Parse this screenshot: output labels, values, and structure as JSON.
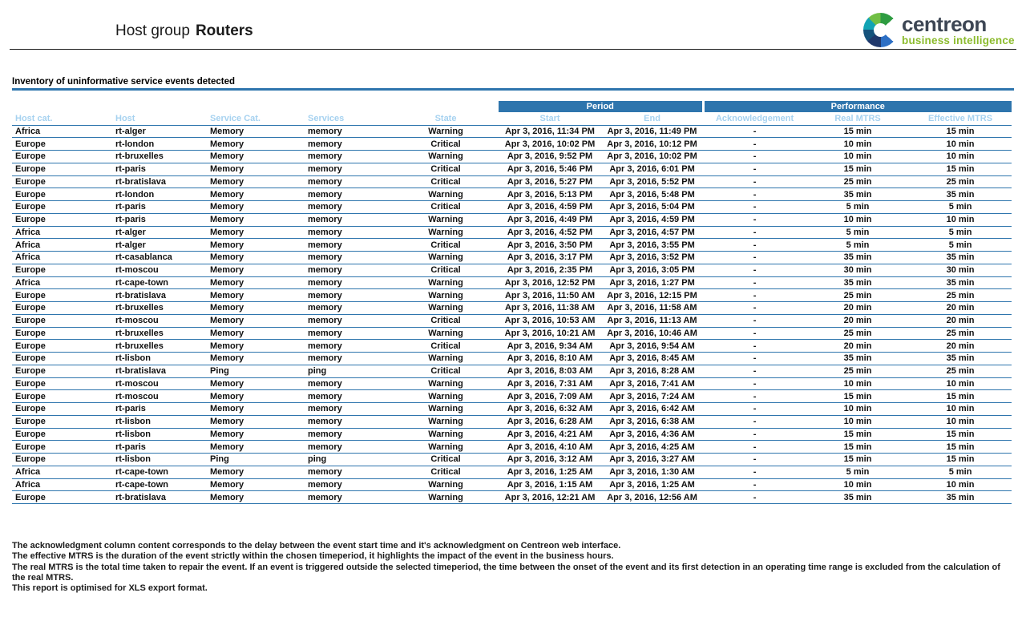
{
  "report": {
    "title_prefix": "Host group",
    "group_name": "Routers",
    "section_title": "Inventory of uninformative service events detected"
  },
  "logo": {
    "brand": "centreon",
    "tagline": "business intelligence",
    "mark": "centreon-c-icon"
  },
  "colors": {
    "table_header_blue": "#2E75AD",
    "column_label_blue": "#A6D2F0",
    "warning_orange": "#F7A13E",
    "critical_red": "#ED2151",
    "brand_dark": "#3D4654",
    "brand_green": "#8CBB2E"
  },
  "table": {
    "group_headers": {
      "period": "Period",
      "performance": "Performance"
    },
    "columns": [
      "Host cat.",
      "Host",
      "Service Cat.",
      "Services",
      "State",
      "Start",
      "End",
      "Acknowledgement",
      "Real MTRS",
      "Effective MTRS"
    ],
    "column_keys": [
      "host-cat",
      "host",
      "service-cat",
      "services",
      "state",
      "start",
      "end",
      "acknowledgement",
      "real-mtrs",
      "effective-mtrs"
    ],
    "rows": [
      [
        "Africa",
        "rt-alger",
        "Memory",
        "memory",
        "Warning",
        "Apr 3, 2016, 11:34 PM",
        "Apr 3, 2016, 11:49 PM",
        "-",
        "15 min",
        "15 min"
      ],
      [
        "Europe",
        "rt-london",
        "Memory",
        "memory",
        "Critical",
        "Apr 3, 2016, 10:02 PM",
        "Apr 3, 2016, 10:12 PM",
        "-",
        "10 min",
        "10 min"
      ],
      [
        "Europe",
        "rt-bruxelles",
        "Memory",
        "memory",
        "Warning",
        "Apr 3, 2016, 9:52 PM",
        "Apr 3, 2016, 10:02 PM",
        "-",
        "10 min",
        "10 min"
      ],
      [
        "Europe",
        "rt-paris",
        "Memory",
        "memory",
        "Critical",
        "Apr 3, 2016, 5:46 PM",
        "Apr 3, 2016, 6:01 PM",
        "-",
        "15 min",
        "15 min"
      ],
      [
        "Europe",
        "rt-bratislava",
        "Memory",
        "memory",
        "Critical",
        "Apr 3, 2016, 5:27 PM",
        "Apr 3, 2016, 5:52 PM",
        "-",
        "25 min",
        "25 min"
      ],
      [
        "Europe",
        "rt-london",
        "Memory",
        "memory",
        "Warning",
        "Apr 3, 2016, 5:13 PM",
        "Apr 3, 2016, 5:48 PM",
        "-",
        "35 min",
        "35 min"
      ],
      [
        "Europe",
        "rt-paris",
        "Memory",
        "memory",
        "Critical",
        "Apr 3, 2016, 4:59 PM",
        "Apr 3, 2016, 5:04 PM",
        "-",
        "5 min",
        "5 min"
      ],
      [
        "Europe",
        "rt-paris",
        "Memory",
        "memory",
        "Warning",
        "Apr 3, 2016, 4:49 PM",
        "Apr 3, 2016, 4:59 PM",
        "-",
        "10 min",
        "10 min"
      ],
      [
        "Africa",
        "rt-alger",
        "Memory",
        "memory",
        "Warning",
        "Apr 3, 2016, 4:52 PM",
        "Apr 3, 2016, 4:57 PM",
        "-",
        "5 min",
        "5 min"
      ],
      [
        "Africa",
        "rt-alger",
        "Memory",
        "memory",
        "Critical",
        "Apr 3, 2016, 3:50 PM",
        "Apr 3, 2016, 3:55 PM",
        "-",
        "5 min",
        "5 min"
      ],
      [
        "Africa",
        "rt-casablanca",
        "Memory",
        "memory",
        "Warning",
        "Apr 3, 2016, 3:17 PM",
        "Apr 3, 2016, 3:52 PM",
        "-",
        "35 min",
        "35 min"
      ],
      [
        "Europe",
        "rt-moscou",
        "Memory",
        "memory",
        "Critical",
        "Apr 3, 2016, 2:35 PM",
        "Apr 3, 2016, 3:05 PM",
        "-",
        "30 min",
        "30 min"
      ],
      [
        "Africa",
        "rt-cape-town",
        "Memory",
        "memory",
        "Warning",
        "Apr 3, 2016, 12:52 PM",
        "Apr 3, 2016, 1:27 PM",
        "-",
        "35 min",
        "35 min"
      ],
      [
        "Europe",
        "rt-bratislava",
        "Memory",
        "memory",
        "Warning",
        "Apr 3, 2016, 11:50 AM",
        "Apr 3, 2016, 12:15 PM",
        "-",
        "25 min",
        "25 min"
      ],
      [
        "Europe",
        "rt-bruxelles",
        "Memory",
        "memory",
        "Warning",
        "Apr 3, 2016, 11:38 AM",
        "Apr 3, 2016, 11:58 AM",
        "-",
        "20 min",
        "20 min"
      ],
      [
        "Europe",
        "rt-moscou",
        "Memory",
        "memory",
        "Critical",
        "Apr 3, 2016, 10:53 AM",
        "Apr 3, 2016, 11:13 AM",
        "-",
        "20 min",
        "20 min"
      ],
      [
        "Europe",
        "rt-bruxelles",
        "Memory",
        "memory",
        "Warning",
        "Apr 3, 2016, 10:21 AM",
        "Apr 3, 2016, 10:46 AM",
        "-",
        "25 min",
        "25 min"
      ],
      [
        "Europe",
        "rt-bruxelles",
        "Memory",
        "memory",
        "Critical",
        "Apr 3, 2016, 9:34 AM",
        "Apr 3, 2016, 9:54 AM",
        "-",
        "20 min",
        "20 min"
      ],
      [
        "Europe",
        "rt-lisbon",
        "Memory",
        "memory",
        "Warning",
        "Apr 3, 2016, 8:10 AM",
        "Apr 3, 2016, 8:45 AM",
        "-",
        "35 min",
        "35 min"
      ],
      [
        "Europe",
        "rt-bratislava",
        "Ping",
        "ping",
        "Critical",
        "Apr 3, 2016, 8:03 AM",
        "Apr 3, 2016, 8:28 AM",
        "-",
        "25 min",
        "25 min"
      ],
      [
        "Europe",
        "rt-moscou",
        "Memory",
        "memory",
        "Warning",
        "Apr 3, 2016, 7:31 AM",
        "Apr 3, 2016, 7:41 AM",
        "-",
        "10 min",
        "10 min"
      ],
      [
        "Europe",
        "rt-moscou",
        "Memory",
        "memory",
        "Warning",
        "Apr 3, 2016, 7:09 AM",
        "Apr 3, 2016, 7:24 AM",
        "-",
        "15 min",
        "15 min"
      ],
      [
        "Europe",
        "rt-paris",
        "Memory",
        "memory",
        "Warning",
        "Apr 3, 2016, 6:32 AM",
        "Apr 3, 2016, 6:42 AM",
        "-",
        "10 min",
        "10 min"
      ],
      [
        "Europe",
        "rt-lisbon",
        "Memory",
        "memory",
        "Warning",
        "Apr 3, 2016, 6:28 AM",
        "Apr 3, 2016, 6:38 AM",
        "-",
        "10 min",
        "10 min"
      ],
      [
        "Europe",
        "rt-lisbon",
        "Memory",
        "memory",
        "Warning",
        "Apr 3, 2016, 4:21 AM",
        "Apr 3, 2016, 4:36 AM",
        "-",
        "15 min",
        "15 min"
      ],
      [
        "Europe",
        "rt-paris",
        "Memory",
        "memory",
        "Warning",
        "Apr 3, 2016, 4:10 AM",
        "Apr 3, 2016, 4:25 AM",
        "-",
        "15 min",
        "15 min"
      ],
      [
        "Europe",
        "rt-lisbon",
        "Ping",
        "ping",
        "Critical",
        "Apr 3, 2016, 3:12 AM",
        "Apr 3, 2016, 3:27 AM",
        "-",
        "15 min",
        "15 min"
      ],
      [
        "Africa",
        "rt-cape-town",
        "Memory",
        "memory",
        "Critical",
        "Apr 3, 2016, 1:25 AM",
        "Apr 3, 2016, 1:30 AM",
        "-",
        "5 min",
        "5 min"
      ],
      [
        "Africa",
        "rt-cape-town",
        "Memory",
        "memory",
        "Warning",
        "Apr 3, 2016, 1:15 AM",
        "Apr 3, 2016, 1:25 AM",
        "-",
        "10 min",
        "10 min"
      ],
      [
        "Europe",
        "rt-bratislava",
        "Memory",
        "memory",
        "Warning",
        "Apr 3, 2016, 12:21 AM",
        "Apr 3, 2016, 12:56 AM",
        "-",
        "35 min",
        "35 min"
      ]
    ]
  },
  "footer": {
    "notes": [
      "The acknowledgment column content corresponds to the delay between the event start time and it's acknowledgment on Centreon web interface.",
      "The effective MTRS is the duration of the event strictly within the chosen timeperiod, it highlights the impact of the event in the business hours.",
      "The real MTRS is the total time taken to repair the event. If an event is triggered outside the selected timeperiod, the time between the onset of the event and its first detection in an operating time range is excluded from the calculation of the real MTRS.",
      "This report is optimised for XLS export format."
    ]
  }
}
